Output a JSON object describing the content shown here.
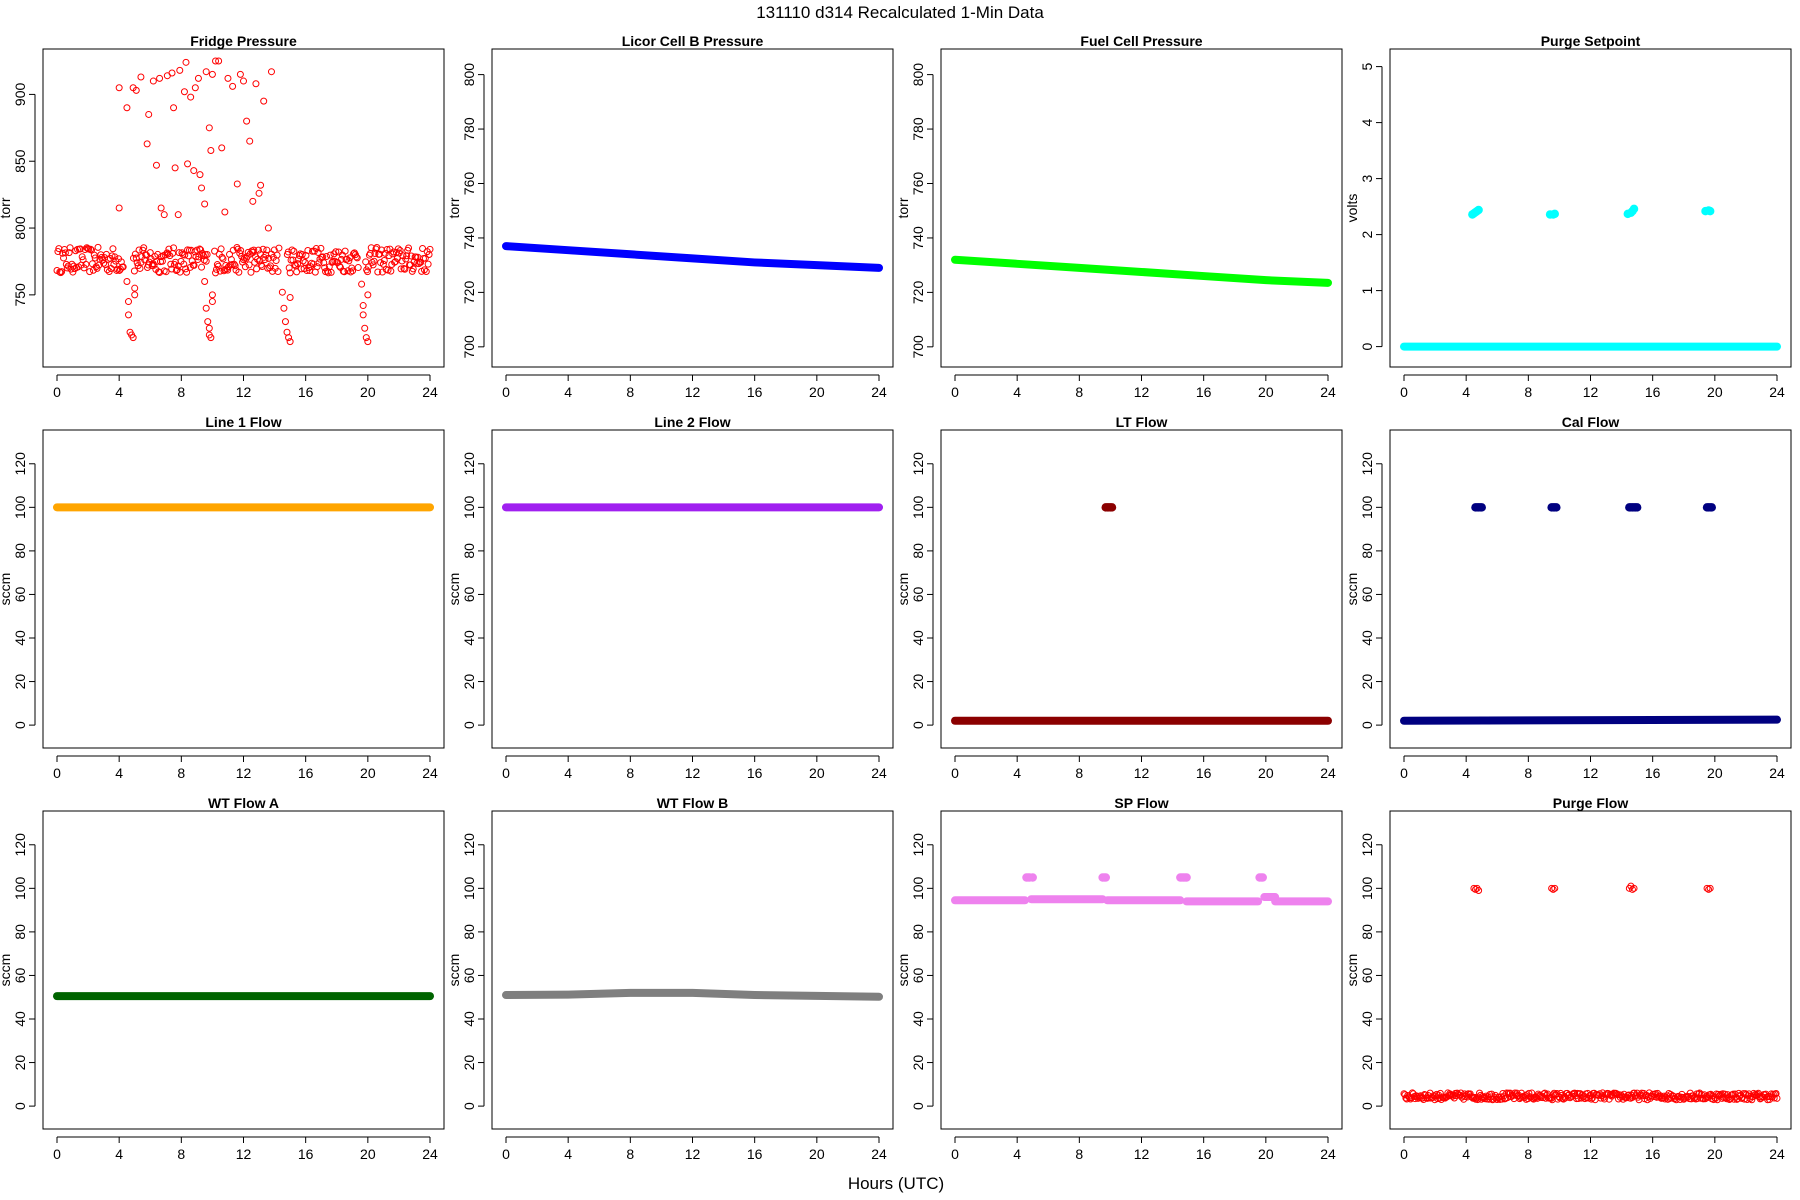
{
  "figure": {
    "title": "131110   d314   Recalculated 1-Min Data",
    "xlabel": "Hours (UTC)"
  },
  "chart_data": [
    {
      "type": "scatter",
      "title": "Fridge Pressure",
      "ylabel": "torr",
      "xlim": [
        0,
        24
      ],
      "ylim": [
        705,
        925
      ],
      "xticks": [
        0,
        4,
        8,
        12,
        16,
        20,
        24
      ],
      "yticks": [
        750,
        800,
        850,
        900
      ],
      "color": "#ff0000",
      "marker": "open",
      "series": [
        {
          "name": "baseline",
          "x_range": [
            0,
            24
          ],
          "gaps": [
            [
              4.3,
              4.9
            ],
            [
              9.7,
              10.1
            ],
            [
              14.3,
              14.8
            ],
            [
              19.4,
              19.8
            ]
          ],
          "mean": 776,
          "jitter": 12
        },
        {
          "name": "dips",
          "points": [
            [
              4.5,
              760
            ],
            [
              4.6,
              745
            ],
            [
              4.6,
              735
            ],
            [
              4.7,
              722
            ],
            [
              4.8,
              720
            ],
            [
              4.9,
              718
            ],
            [
              5.0,
              750
            ],
            [
              5.0,
              755
            ],
            [
              9.5,
              760
            ],
            [
              9.6,
              740
            ],
            [
              9.7,
              730
            ],
            [
              9.8,
              725
            ],
            [
              9.8,
              720
            ],
            [
              9.9,
              718
            ],
            [
              10.0,
              745
            ],
            [
              10.0,
              750
            ],
            [
              14.5,
              752
            ],
            [
              14.6,
              740
            ],
            [
              14.7,
              730
            ],
            [
              14.8,
              722
            ],
            [
              14.9,
              718
            ],
            [
              15.0,
              715
            ],
            [
              15.0,
              748
            ],
            [
              19.6,
              758
            ],
            [
              19.7,
              742
            ],
            [
              19.7,
              735
            ],
            [
              19.8,
              725
            ],
            [
              19.9,
              718
            ],
            [
              20.0,
              715
            ],
            [
              20.0,
              750
            ]
          ]
        },
        {
          "name": "spikes",
          "points": [
            [
              4.0,
              815
            ],
            [
              4.0,
              905
            ],
            [
              4.5,
              890
            ],
            [
              4.9,
              905
            ],
            [
              5.1,
              903
            ],
            [
              5.4,
              913
            ],
            [
              5.8,
              863
            ],
            [
              5.9,
              885
            ],
            [
              6.2,
              910
            ],
            [
              6.4,
              847
            ],
            [
              6.6,
              912
            ],
            [
              6.7,
              815
            ],
            [
              6.9,
              810
            ],
            [
              7.1,
              914
            ],
            [
              7.4,
              916
            ],
            [
              7.5,
              890
            ],
            [
              7.6,
              845
            ],
            [
              7.8,
              810
            ],
            [
              7.9,
              918
            ],
            [
              8.2,
              902
            ],
            [
              8.3,
              924
            ],
            [
              8.4,
              848
            ],
            [
              8.6,
              898
            ],
            [
              8.8,
              843
            ],
            [
              8.9,
              905
            ],
            [
              9.1,
              912
            ],
            [
              9.2,
              840
            ],
            [
              9.3,
              830
            ],
            [
              9.5,
              818
            ],
            [
              9.6,
              917
            ],
            [
              9.8,
              875
            ],
            [
              9.9,
              858
            ],
            [
              10.0,
              915
            ],
            [
              10.2,
              925
            ],
            [
              10.4,
              925
            ],
            [
              10.6,
              860
            ],
            [
              10.8,
              812
            ],
            [
              11.0,
              912
            ],
            [
              11.3,
              906
            ],
            [
              11.6,
              833
            ],
            [
              11.8,
              915
            ],
            [
              12.0,
              910
            ],
            [
              12.2,
              880
            ],
            [
              12.4,
              865
            ],
            [
              12.6,
              820
            ],
            [
              12.8,
              908
            ],
            [
              13.0,
              826
            ],
            [
              13.1,
              832
            ],
            [
              13.3,
              895
            ],
            [
              13.6,
              800
            ],
            [
              13.8,
              917
            ]
          ]
        }
      ]
    },
    {
      "type": "line",
      "title": "Licor Cell B Pressure",
      "ylabel": "torr",
      "xlim": [
        0,
        24
      ],
      "ylim": [
        697,
        805
      ],
      "xticks": [
        0,
        4,
        8,
        12,
        16,
        20,
        24
      ],
      "yticks": [
        700,
        720,
        740,
        760,
        780,
        800
      ],
      "color": "#0000ff",
      "series": [
        {
          "name": "Licor Cell B Pressure",
          "x": [
            0,
            4,
            8,
            12,
            16,
            20,
            24
          ],
          "y": [
            737,
            735.5,
            734,
            732.5,
            731,
            730,
            729
          ]
        }
      ]
    },
    {
      "type": "line",
      "title": "Fuel Cell Pressure",
      "ylabel": "torr",
      "xlim": [
        0,
        24
      ],
      "ylim": [
        697,
        805
      ],
      "xticks": [
        0,
        4,
        8,
        12,
        16,
        20,
        24
      ],
      "yticks": [
        700,
        720,
        740,
        760,
        780,
        800
      ],
      "color": "#00ff00",
      "series": [
        {
          "name": "Fuel Cell Pressure",
          "x": [
            0,
            4,
            8,
            12,
            16,
            20,
            24
          ],
          "y": [
            732,
            730.5,
            729,
            727.5,
            726,
            724.5,
            723.5
          ]
        }
      ]
    },
    {
      "type": "scatter",
      "title": "Purge Setpoint",
      "ylabel": "volts",
      "xlim": [
        0,
        24
      ],
      "ylim": [
        -0.15,
        5.1
      ],
      "xticks": [
        0,
        4,
        8,
        12,
        16,
        20,
        24
      ],
      "yticks": [
        0,
        1,
        2,
        3,
        4,
        5
      ],
      "color": "#00ffff",
      "series": [
        {
          "name": "baseline",
          "x": [
            0,
            24
          ],
          "y": [
            0,
            0
          ]
        },
        {
          "name": "points",
          "points": [
            [
              4.4,
              2.36
            ],
            [
              4.5,
              2.38
            ],
            [
              4.6,
              2.4
            ],
            [
              4.7,
              2.42
            ],
            [
              4.8,
              2.44
            ],
            [
              9.4,
              2.36
            ],
            [
              9.6,
              2.36
            ],
            [
              9.7,
              2.37
            ],
            [
              14.4,
              2.37
            ],
            [
              14.6,
              2.39
            ],
            [
              14.7,
              2.42
            ],
            [
              14.8,
              2.46
            ],
            [
              19.4,
              2.42
            ],
            [
              19.6,
              2.43
            ],
            [
              19.7,
              2.42
            ]
          ]
        }
      ]
    },
    {
      "type": "line",
      "title": "Line 1 Flow",
      "ylabel": "sccm",
      "xlim": [
        0,
        24
      ],
      "ylim": [
        -5,
        130
      ],
      "xticks": [
        0,
        4,
        8,
        12,
        16,
        20,
        24
      ],
      "yticks": [
        0,
        20,
        40,
        60,
        80,
        100,
        120
      ],
      "color": "#ffa500",
      "series": [
        {
          "name": "Line 1 Flow",
          "x": [
            0,
            24
          ],
          "y": [
            100,
            100
          ]
        }
      ]
    },
    {
      "type": "line",
      "title": "Line 2 Flow",
      "ylabel": "sccm",
      "xlim": [
        0,
        24
      ],
      "ylim": [
        -5,
        130
      ],
      "xticks": [
        0,
        4,
        8,
        12,
        16,
        20,
        24
      ],
      "yticks": [
        0,
        20,
        40,
        60,
        80,
        100,
        120
      ],
      "color": "#a020f0",
      "series": [
        {
          "name": "Line 2 Flow",
          "x": [
            0,
            24
          ],
          "y": [
            100,
            100
          ]
        }
      ]
    },
    {
      "type": "scatter",
      "title": "LT Flow",
      "ylabel": "sccm",
      "xlim": [
        0,
        24
      ],
      "ylim": [
        -5,
        130
      ],
      "xticks": [
        0,
        4,
        8,
        12,
        16,
        20,
        24
      ],
      "yticks": [
        0,
        20,
        40,
        60,
        80,
        100,
        120
      ],
      "color": "#8b0000",
      "series": [
        {
          "name": "baseline",
          "x": [
            0,
            24
          ],
          "y": [
            2,
            2
          ]
        },
        {
          "name": "points",
          "points": [
            [
              9.7,
              100
            ],
            [
              9.8,
              100
            ],
            [
              9.9,
              100
            ],
            [
              10.0,
              100
            ],
            [
              10.1,
              100
            ]
          ]
        }
      ]
    },
    {
      "type": "scatter",
      "title": "Cal Flow",
      "ylabel": "sccm",
      "xlim": [
        0,
        24
      ],
      "ylim": [
        -5,
        130
      ],
      "xticks": [
        0,
        4,
        8,
        12,
        16,
        20,
        24
      ],
      "yticks": [
        0,
        20,
        40,
        60,
        80,
        100,
        120
      ],
      "color": "#000080",
      "series": [
        {
          "name": "baseline",
          "x": [
            0,
            24
          ],
          "y": [
            2,
            2.5
          ]
        },
        {
          "name": "points",
          "points": [
            [
              4.6,
              100
            ],
            [
              4.7,
              100
            ],
            [
              4.8,
              100
            ],
            [
              4.9,
              100
            ],
            [
              5.0,
              100
            ],
            [
              9.5,
              100
            ],
            [
              9.6,
              100
            ],
            [
              9.7,
              100
            ],
            [
              9.8,
              100
            ],
            [
              14.5,
              100
            ],
            [
              14.6,
              100
            ],
            [
              14.7,
              100
            ],
            [
              14.8,
              100
            ],
            [
              14.9,
              100
            ],
            [
              15.0,
              100
            ],
            [
              19.5,
              100
            ],
            [
              19.6,
              100
            ],
            [
              19.7,
              100
            ],
            [
              19.8,
              100
            ]
          ]
        }
      ]
    },
    {
      "type": "line",
      "title": "WT Flow A",
      "ylabel": "sccm",
      "xlim": [
        0,
        24
      ],
      "ylim": [
        -5,
        130
      ],
      "xticks": [
        0,
        4,
        8,
        12,
        16,
        20,
        24
      ],
      "yticks": [
        0,
        20,
        40,
        60,
        80,
        100,
        120
      ],
      "color": "#006400",
      "series": [
        {
          "name": "WT Flow A",
          "x": [
            0,
            24
          ],
          "y": [
            50.5,
            50.5
          ]
        }
      ]
    },
    {
      "type": "line",
      "title": "WT Flow B",
      "ylabel": "sccm",
      "xlim": [
        0,
        24
      ],
      "ylim": [
        -5,
        130
      ],
      "xticks": [
        0,
        4,
        8,
        12,
        16,
        20,
        24
      ],
      "yticks": [
        0,
        20,
        40,
        60,
        80,
        100,
        120
      ],
      "color": "#7f7f7f",
      "series": [
        {
          "name": "WT Flow B",
          "x": [
            0,
            4,
            8,
            12,
            16,
            20,
            24
          ],
          "y": [
            51,
            51.2,
            52,
            52,
            51,
            50.6,
            50.2
          ]
        }
      ]
    },
    {
      "type": "scatter",
      "title": "SP Flow",
      "ylabel": "sccm",
      "xlim": [
        0,
        24
      ],
      "ylim": [
        -5,
        130
      ],
      "xticks": [
        0,
        4,
        8,
        12,
        16,
        20,
        24
      ],
      "yticks": [
        0,
        20,
        40,
        60,
        80,
        100,
        120
      ],
      "color": "#ee82ee",
      "series": [
        {
          "name": "segments",
          "segments": [
            [
              0,
              4.5,
              94.5
            ],
            [
              4.9,
              9.5,
              95
            ],
            [
              9.8,
              14.5,
              94.5
            ],
            [
              14.9,
              19.5,
              94
            ],
            [
              19.9,
              20.6,
              96
            ],
            [
              20.6,
              24,
              94
            ]
          ]
        },
        {
          "name": "points",
          "points": [
            [
              4.6,
              105
            ],
            [
              4.7,
              105
            ],
            [
              4.8,
              105
            ],
            [
              5.0,
              105
            ],
            [
              9.5,
              105
            ],
            [
              9.6,
              105
            ],
            [
              9.7,
              105
            ],
            [
              14.5,
              105
            ],
            [
              14.6,
              105
            ],
            [
              14.7,
              105
            ],
            [
              14.8,
              105
            ],
            [
              14.9,
              105
            ],
            [
              19.6,
              105
            ],
            [
              19.7,
              105
            ],
            [
              19.8,
              105
            ]
          ]
        }
      ]
    },
    {
      "type": "scatter",
      "title": "Purge Flow",
      "ylabel": "sccm",
      "xlim": [
        0,
        24
      ],
      "ylim": [
        -5,
        130
      ],
      "xticks": [
        0,
        4,
        8,
        12,
        16,
        20,
        24
      ],
      "yticks": [
        0,
        20,
        40,
        60,
        80,
        100,
        120
      ],
      "color": "#ff0000",
      "marker": "open",
      "series": [
        {
          "name": "baseline",
          "x_range": [
            0,
            24
          ],
          "mean": 4.5,
          "jitter": 2
        },
        {
          "name": "points",
          "points": [
            [
              4.5,
              100
            ],
            [
              4.6,
              99.5
            ],
            [
              4.7,
              100
            ],
            [
              4.8,
              99
            ],
            [
              9.5,
              100
            ],
            [
              9.6,
              99.5
            ],
            [
              9.7,
              100
            ],
            [
              14.5,
              100
            ],
            [
              14.6,
              101
            ],
            [
              14.7,
              99.5
            ],
            [
              14.8,
              100
            ],
            [
              19.5,
              100
            ],
            [
              19.6,
              99.5
            ],
            [
              19.7,
              100
            ]
          ]
        }
      ]
    }
  ]
}
